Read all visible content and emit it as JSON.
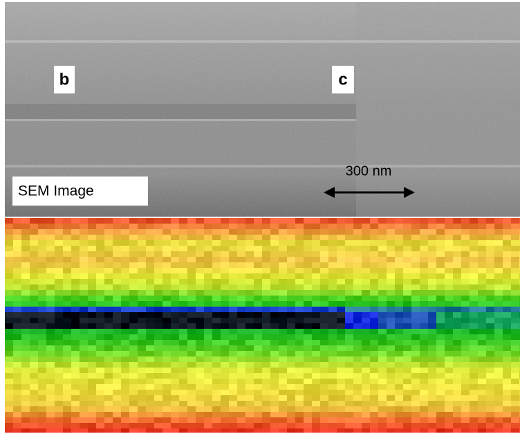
{
  "labels": {
    "panel_b": "b",
    "panel_c": "c",
    "scale_bar": "300 nm",
    "image_type": "SEM Image"
  }
}
